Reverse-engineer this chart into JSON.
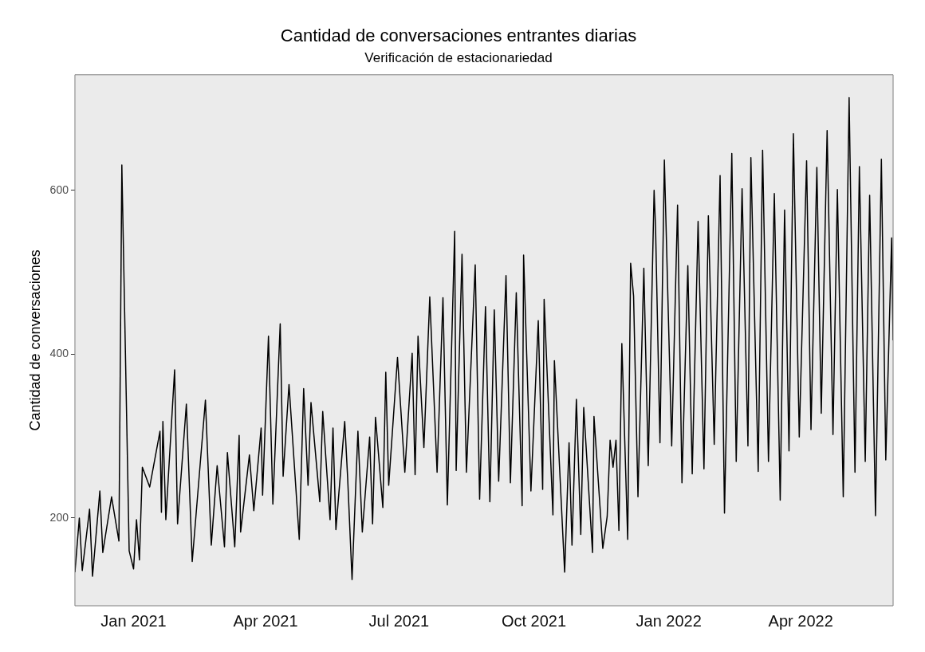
{
  "chart_data": {
    "type": "line",
    "title": "Cantidad de conversaciones entrantes diarias",
    "subtitle": "Verificación de estacionariedad",
    "ylabel": "Cantidad de conversaciones",
    "xlim": [
      "2020-11-22",
      "2022-06-03"
    ],
    "xticks": [
      {
        "value": "2021-01-01",
        "label": "Jan 2021"
      },
      {
        "value": "2021-04-01",
        "label": "Apr 2021"
      },
      {
        "value": "2021-07-01",
        "label": "Jul 2021"
      },
      {
        "value": "2021-10-01",
        "label": "Oct 2021"
      },
      {
        "value": "2022-01-01",
        "label": "Jan 2022"
      },
      {
        "value": "2022-04-01",
        "label": "Apr 2022"
      }
    ],
    "ylim": [
      93,
      741
    ],
    "yticks": [
      200,
      400,
      600
    ],
    "legend": false,
    "marker": "none",
    "line_style": "solid",
    "series": [
      {
        "color": "#000000",
        "x": [
          "2020-11-22",
          "2020-11-25",
          "2020-11-27",
          "2020-12-02",
          "2020-12-04",
          "2020-12-09",
          "2020-12-11",
          "2020-12-17",
          "2020-12-22",
          "2020-12-24",
          "2020-12-29",
          "2021-01-01",
          "2021-01-03",
          "2021-01-05",
          "2021-01-07",
          "2021-01-12",
          "2021-01-19",
          "2021-01-20",
          "2021-01-21",
          "2021-01-23",
          "2021-01-29",
          "2021-01-31",
          "2021-02-06",
          "2021-02-10",
          "2021-02-19",
          "2021-02-23",
          "2021-02-27",
          "2021-03-04",
          "2021-03-06",
          "2021-03-11",
          "2021-03-14",
          "2021-03-15",
          "2021-03-21",
          "2021-03-24",
          "2021-03-29",
          "2021-03-30",
          "2021-04-03",
          "2021-04-06",
          "2021-04-11",
          "2021-04-13",
          "2021-04-17",
          "2021-04-24",
          "2021-04-27",
          "2021-04-30",
          "2021-05-02",
          "2021-05-08",
          "2021-05-10",
          "2021-05-15",
          "2021-05-17",
          "2021-05-19",
          "2021-05-25",
          "2021-05-27",
          "2021-05-30",
          "2021-06-03",
          "2021-06-06",
          "2021-06-11",
          "2021-06-13",
          "2021-06-15",
          "2021-06-20",
          "2021-06-22",
          "2021-06-24",
          "2021-06-30",
          "2021-07-05",
          "2021-07-10",
          "2021-07-12",
          "2021-07-14",
          "2021-07-18",
          "2021-07-22",
          "2021-07-27",
          "2021-07-31",
          "2021-08-03",
          "2021-08-08",
          "2021-08-09",
          "2021-08-13",
          "2021-08-16",
          "2021-08-22",
          "2021-08-25",
          "2021-08-29",
          "2021-09-01",
          "2021-09-04",
          "2021-09-07",
          "2021-09-12",
          "2021-09-15",
          "2021-09-19",
          "2021-09-23",
          "2021-09-24",
          "2021-09-29",
          "2021-10-04",
          "2021-10-07",
          "2021-10-08",
          "2021-10-14",
          "2021-10-15",
          "2021-10-22",
          "2021-10-25",
          "2021-10-27",
          "2021-10-30",
          "2021-11-02",
          "2021-11-04",
          "2021-11-10",
          "2021-11-11",
          "2021-11-17",
          "2021-11-20",
          "2021-11-22",
          "2021-11-24",
          "2021-11-26",
          "2021-11-28",
          "2021-11-30",
          "2021-12-04",
          "2021-12-06",
          "2021-12-08",
          "2021-12-11",
          "2021-12-15",
          "2021-12-18",
          "2021-12-22",
          "2021-12-23",
          "2021-12-26",
          "2021-12-29",
          "2022-01-03",
          "2022-01-07",
          "2022-01-10",
          "2022-01-14",
          "2022-01-17",
          "2022-01-21",
          "2022-01-25",
          "2022-01-28",
          "2022-02-01",
          "2022-02-05",
          "2022-02-08",
          "2022-02-13",
          "2022-02-16",
          "2022-02-20",
          "2022-02-24",
          "2022-02-26",
          "2022-03-03",
          "2022-03-06",
          "2022-03-10",
          "2022-03-14",
          "2022-03-18",
          "2022-03-21",
          "2022-03-24",
          "2022-03-27",
          "2022-03-31",
          "2022-04-05",
          "2022-04-08",
          "2022-04-12",
          "2022-04-15",
          "2022-04-19",
          "2022-04-23",
          "2022-04-26",
          "2022-04-30",
          "2022-05-04",
          "2022-05-08",
          "2022-05-11",
          "2022-05-15",
          "2022-05-18",
          "2022-05-22",
          "2022-05-26",
          "2022-05-29",
          "2022-06-02",
          "2022-06-03"
        ],
        "values": [
          134,
          200,
          136,
          211,
          129,
          233,
          158,
          226,
          172,
          631,
          160,
          138,
          198,
          149,
          262,
          238,
          306,
          207,
          318,
          198,
          381,
          193,
          339,
          147,
          344,
          167,
          264,
          165,
          280,
          165,
          301,
          183,
          277,
          209,
          310,
          228,
          422,
          217,
          437,
          251,
          363,
          174,
          358,
          240,
          341,
          220,
          330,
          198,
          310,
          186,
          318,
          249,
          125,
          306,
          183,
          299,
          193,
          323,
          213,
          378,
          240,
          396,
          256,
          401,
          253,
          422,
          286,
          470,
          256,
          469,
          216,
          550,
          258,
          522,
          256,
          509,
          223,
          458,
          220,
          454,
          245,
          496,
          243,
          475,
          215,
          521,
          233,
          441,
          235,
          467,
          204,
          392,
          134,
          292,
          167,
          345,
          180,
          335,
          158,
          324,
          163,
          202,
          295,
          262,
          295,
          185,
          413,
          174,
          511,
          471,
          226,
          505,
          264,
          600,
          554,
          292,
          637,
          288,
          582,
          243,
          508,
          254,
          562,
          260,
          569,
          290,
          618,
          206,
          645,
          269,
          602,
          288,
          640,
          257,
          649,
          269,
          596,
          222,
          576,
          282,
          669,
          299,
          636,
          308,
          628,
          328,
          673,
          302,
          601,
          226,
          713,
          256,
          629,
          269,
          594,
          203,
          638,
          271,
          542,
          417
        ]
      }
    ]
  }
}
